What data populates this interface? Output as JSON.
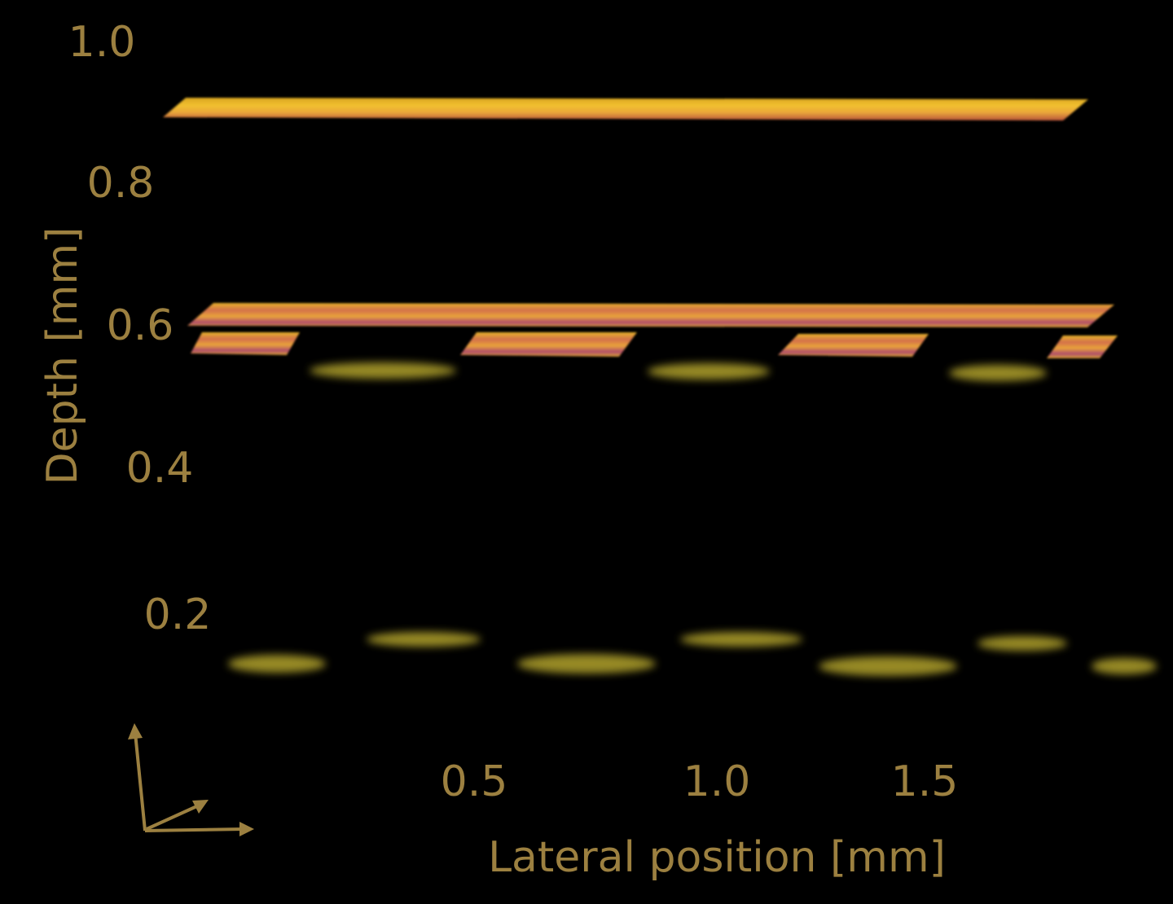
{
  "figure": {
    "y_axis": {
      "label": "Depth [mm]",
      "tick_labels": [
        "1.0",
        "0.8",
        "0.6",
        "0.4",
        "0.2"
      ]
    },
    "x_axis": {
      "label": "Lateral position [mm]",
      "tick_labels": [
        "0.5",
        "1.0",
        "1.5"
      ]
    }
  }
}
